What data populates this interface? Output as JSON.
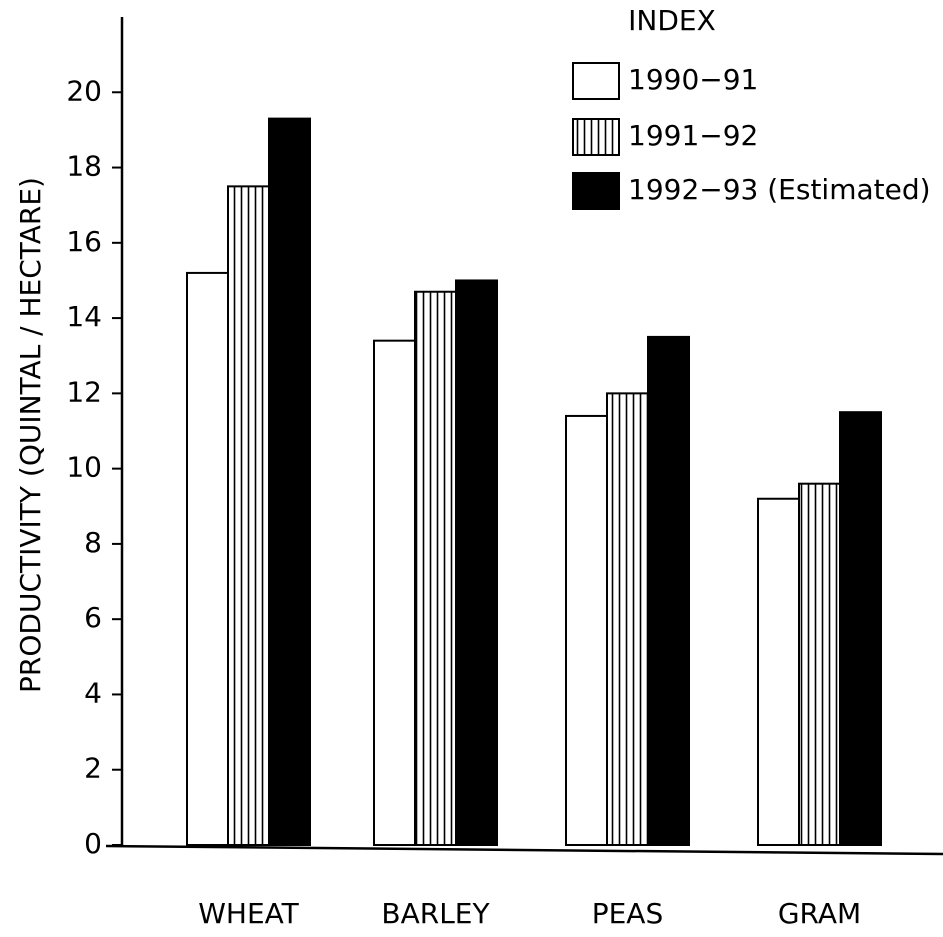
{
  "chart_data": {
    "type": "bar",
    "y_label": "PRODUCTIVITY (QUINTAL / HECTARE)",
    "legend_title": "INDEX",
    "categories": [
      "WHEAT",
      "BARLEY",
      "PEAS",
      "GRAM"
    ],
    "series": [
      {
        "name": "1990−91",
        "color": "#ffffff",
        "values": [
          15.2,
          13.4,
          11.4,
          9.2
        ]
      },
      {
        "name": "1991−92",
        "color": "#ffffff",
        "hatch": "vertical",
        "values": [
          17.5,
          14.7,
          12.0,
          9.6
        ]
      },
      {
        "name": "1992−93 (Estimated)",
        "color": "#000000",
        "values": [
          19.3,
          15.0,
          13.5,
          11.5
        ]
      }
    ],
    "ylim": [
      0,
      22
    ],
    "yticks": [
      0,
      2,
      4,
      6,
      8,
      10,
      12,
      14,
      16,
      18,
      20
    ],
    "legend": "top-right"
  }
}
